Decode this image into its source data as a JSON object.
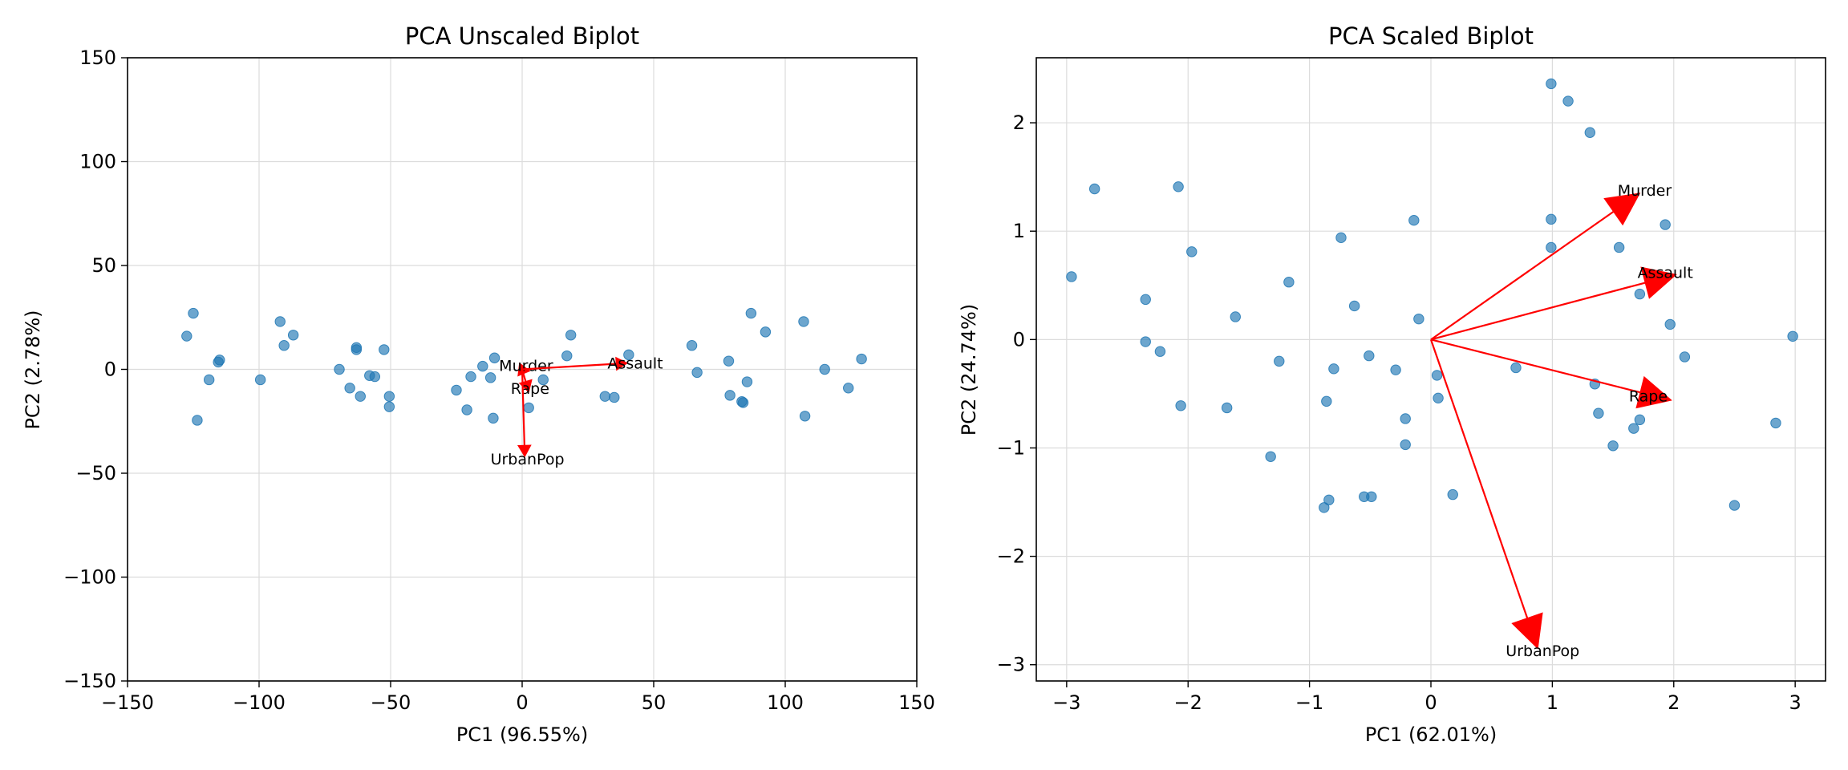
{
  "chart_data": [
    {
      "type": "scatter",
      "title": "PCA Unscaled Biplot",
      "xlabel": "PC1 (96.55%)",
      "ylabel": "PC2 (2.78%)",
      "xlim": [
        -150,
        150
      ],
      "ylim": [
        -150,
        150
      ],
      "xticks": [
        -150,
        -100,
        -50,
        0,
        50,
        100,
        150
      ],
      "yticks": [
        -150,
        -100,
        -50,
        0,
        50,
        100,
        150
      ],
      "xtick_labels": [
        "−150",
        "−100",
        "−50",
        "0",
        "50",
        "100",
        "150"
      ],
      "ytick_labels": [
        "−150",
        "−100",
        "−50",
        "0",
        "50",
        "100",
        "150"
      ],
      "grid": true,
      "point_color": "#1f77b4",
      "vector_color": "#ff0000",
      "points": [
        [
          -127.5,
          16.0
        ],
        [
          -125.0,
          27.0
        ],
        [
          -123.5,
          -24.5
        ],
        [
          -119.0,
          -5.0
        ],
        [
          -115.5,
          3.5
        ],
        [
          -115.0,
          4.5
        ],
        [
          -99.5,
          -5.0
        ],
        [
          -92.0,
          23.0
        ],
        [
          -90.5,
          11.5
        ],
        [
          -87.0,
          16.5
        ],
        [
          -69.5,
          0.0
        ],
        [
          -65.5,
          -9.0
        ],
        [
          -63.0,
          10.5
        ],
        [
          -63.0,
          9.5
        ],
        [
          -61.5,
          -13.0
        ],
        [
          -58.0,
          -3.0
        ],
        [
          -56.0,
          -3.5
        ],
        [
          -52.5,
          9.5
        ],
        [
          -50.5,
          -13.0
        ],
        [
          -50.5,
          -18.0
        ],
        [
          -25.0,
          -10.0
        ],
        [
          -21.0,
          -19.5
        ],
        [
          -19.5,
          -3.5
        ],
        [
          -15.0,
          1.5
        ],
        [
          -12.0,
          -4.0
        ],
        [
          -10.5,
          5.5
        ],
        [
          -11.0,
          -23.5
        ],
        [
          2.5,
          -18.5
        ],
        [
          8.0,
          -5.0
        ],
        [
          17.0,
          6.5
        ],
        [
          18.5,
          16.5
        ],
        [
          31.5,
          -13.0
        ],
        [
          35.0,
          -13.5
        ],
        [
          40.5,
          7.0
        ],
        [
          64.5,
          11.5
        ],
        [
          66.5,
          -1.5
        ],
        [
          78.5,
          4.0
        ],
        [
          79.0,
          -12.5
        ],
        [
          83.5,
          -15.5
        ],
        [
          84.0,
          -16.0
        ],
        [
          85.5,
          -6.0
        ],
        [
          87.0,
          27.0
        ],
        [
          92.5,
          18.0
        ],
        [
          107.0,
          23.0
        ],
        [
          107.5,
          -22.5
        ],
        [
          115.0,
          0.0
        ],
        [
          124.0,
          -9.0
        ],
        [
          129.0,
          5.0
        ]
      ],
      "vectors": [
        {
          "label": "Murder",
          "x": -1.0,
          "y": 3.0,
          "lx": 1.5,
          "ly": 2.0
        },
        {
          "label": "Assault",
          "x": 40.0,
          "y": 3.0,
          "lx": 43.0,
          "ly": 3.0
        },
        {
          "label": "Rape",
          "x": 2.5,
          "y": -11.0,
          "lx": 3.0,
          "ly": -9.0
        },
        {
          "label": "UrbanPop",
          "x": 1.0,
          "y": -42.0,
          "lx": 2.0,
          "ly": -43.0
        }
      ]
    },
    {
      "type": "scatter",
      "title": "PCA Scaled Biplot",
      "xlabel": "PC1 (62.01%)",
      "ylabel": "PC2 (24.74%)",
      "xlim": [
        -3.25,
        3.25
      ],
      "ylim": [
        -3.15,
        2.6
      ],
      "xticks": [
        -3,
        -2,
        -1,
        0,
        1,
        2,
        3
      ],
      "yticks": [
        -3,
        -2,
        -1,
        0,
        1,
        2
      ],
      "xtick_labels": [
        "−3",
        "−2",
        "−1",
        "0",
        "1",
        "2",
        "3"
      ],
      "ytick_labels": [
        "−3",
        "−2",
        "−1",
        "0",
        "1",
        "2"
      ],
      "grid": true,
      "point_color": "#1f77b4",
      "vector_color": "#ff0000",
      "points": [
        [
          0.99,
          2.36
        ],
        [
          1.13,
          2.2
        ],
        [
          1.31,
          1.91
        ],
        [
          -2.08,
          1.41
        ],
        [
          -2.77,
          1.39
        ],
        [
          -0.14,
          1.1
        ],
        [
          0.99,
          1.11
        ],
        [
          1.93,
          1.06
        ],
        [
          -0.74,
          0.94
        ],
        [
          0.99,
          0.85
        ],
        [
          1.55,
          0.85
        ],
        [
          -1.97,
          0.81
        ],
        [
          -1.17,
          0.53
        ],
        [
          -2.35,
          0.37
        ],
        [
          1.72,
          0.42
        ],
        [
          -0.63,
          0.31
        ],
        [
          -1.61,
          0.21
        ],
        [
          -0.1,
          0.19
        ],
        [
          1.97,
          0.14
        ],
        [
          -2.96,
          0.58
        ],
        [
          -2.35,
          -0.02
        ],
        [
          -2.23,
          -0.11
        ],
        [
          2.98,
          0.03
        ],
        [
          -0.51,
          -0.15
        ],
        [
          2.09,
          -0.16
        ],
        [
          -1.25,
          -0.2
        ],
        [
          -0.8,
          -0.27
        ],
        [
          -0.29,
          -0.28
        ],
        [
          0.7,
          -0.26
        ],
        [
          0.05,
          -0.33
        ],
        [
          1.35,
          -0.41
        ],
        [
          0.06,
          -0.54
        ],
        [
          -0.86,
          -0.57
        ],
        [
          -2.06,
          -0.61
        ],
        [
          -1.68,
          -0.63
        ],
        [
          1.38,
          -0.68
        ],
        [
          -0.21,
          -0.73
        ],
        [
          1.72,
          -0.74
        ],
        [
          2.84,
          -0.77
        ],
        [
          1.67,
          -0.82
        ],
        [
          -0.21,
          -0.97
        ],
        [
          1.5,
          -0.98
        ],
        [
          -1.32,
          -1.08
        ],
        [
          0.18,
          -1.43
        ],
        [
          -0.55,
          -1.45
        ],
        [
          -0.49,
          -1.45
        ],
        [
          -0.84,
          -1.48
        ],
        [
          -0.88,
          -1.55
        ],
        [
          2.5,
          -1.53
        ]
      ],
      "vectors": [
        {
          "label": "Murder",
          "x": 1.72,
          "y": 1.35,
          "lx": 1.76,
          "ly": 1.38
        },
        {
          "label": "Assault",
          "x": 2.02,
          "y": 0.6,
          "lx": 1.93,
          "ly": 0.62
        },
        {
          "label": "Rape",
          "x": 1.98,
          "y": -0.56,
          "lx": 1.79,
          "ly": -0.52
        },
        {
          "label": "UrbanPop",
          "x": 0.88,
          "y": -2.85,
          "lx": 0.92,
          "ly": -2.87
        }
      ]
    }
  ]
}
